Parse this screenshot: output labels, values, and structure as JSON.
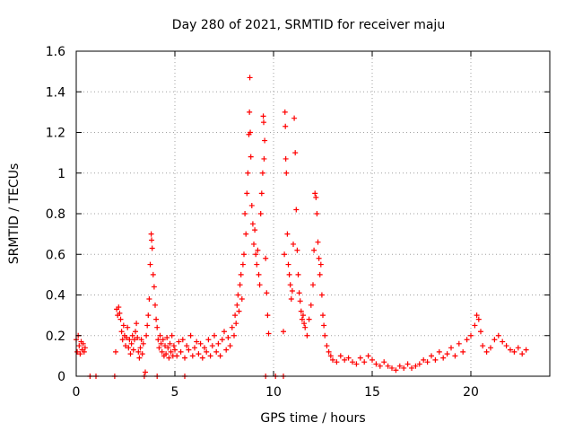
{
  "chart_data": {
    "type": "scatter",
    "title": "Day 280 of 2021, SRMTID for receiver maju",
    "xlabel": "GPS time / hours",
    "ylabel": "SRMTID / TECUs",
    "xlim": [
      0,
      24
    ],
    "ylim": [
      0,
      1.6
    ],
    "xticks": [
      0,
      5,
      10,
      15,
      20
    ],
    "yticks": [
      0,
      0.2,
      0.4,
      0.6,
      0.8,
      1,
      1.2,
      1.4,
      1.6
    ],
    "xtick_labels": [
      "0",
      "5",
      "10",
      "15",
      "20"
    ],
    "ytick_labels": [
      "0",
      "0.2",
      "0.4",
      "0.6",
      "0.8",
      "1",
      "1.2",
      "1.4",
      "1.6"
    ],
    "grid": true,
    "marker": "+",
    "color": "#ff0000",
    "series": [
      {
        "name": "SRMTID",
        "points": [
          [
            0.0,
            0.18
          ],
          [
            0.05,
            0.12
          ],
          [
            0.1,
            0.2
          ],
          [
            0.15,
            0.15
          ],
          [
            0.2,
            0.11
          ],
          [
            0.25,
            0.17
          ],
          [
            0.3,
            0.13
          ],
          [
            0.35,
            0.16
          ],
          [
            0.4,
            0.12
          ],
          [
            0.45,
            0.14
          ],
          [
            0.7,
            0.0
          ],
          [
            1.0,
            0.0
          ],
          [
            1.95,
            0.0
          ],
          [
            3.45,
            0.0
          ],
          [
            4.1,
            0.0
          ],
          [
            5.5,
            0.0
          ],
          [
            9.6,
            0.0
          ],
          [
            10.1,
            0.0
          ],
          [
            10.5,
            0.0
          ],
          [
            2.0,
            0.12
          ],
          [
            2.05,
            0.33
          ],
          [
            2.1,
            0.3
          ],
          [
            2.15,
            0.34
          ],
          [
            2.2,
            0.31
          ],
          [
            2.25,
            0.28
          ],
          [
            2.3,
            0.22
          ],
          [
            2.35,
            0.18
          ],
          [
            2.4,
            0.25
          ],
          [
            2.45,
            0.2
          ],
          [
            2.5,
            0.15
          ],
          [
            2.55,
            0.19
          ],
          [
            2.6,
            0.24
          ],
          [
            2.65,
            0.14
          ],
          [
            2.7,
            0.18
          ],
          [
            2.75,
            0.11
          ],
          [
            2.8,
            0.16
          ],
          [
            2.85,
            0.2
          ],
          [
            2.9,
            0.13
          ],
          [
            2.95,
            0.18
          ],
          [
            3.0,
            0.22
          ],
          [
            3.05,
            0.26
          ],
          [
            3.1,
            0.19
          ],
          [
            3.15,
            0.12
          ],
          [
            3.2,
            0.09
          ],
          [
            3.25,
            0.14
          ],
          [
            3.3,
            0.18
          ],
          [
            3.35,
            0.11
          ],
          [
            3.4,
            0.16
          ],
          [
            3.5,
            0.02
          ],
          [
            3.55,
            0.2
          ],
          [
            3.6,
            0.25
          ],
          [
            3.65,
            0.3
          ],
          [
            3.7,
            0.38
          ],
          [
            3.75,
            0.55
          ],
          [
            3.8,
            0.7
          ],
          [
            3.82,
            0.67
          ],
          [
            3.85,
            0.63
          ],
          [
            3.9,
            0.5
          ],
          [
            3.95,
            0.44
          ],
          [
            4.0,
            0.35
          ],
          [
            4.05,
            0.28
          ],
          [
            4.1,
            0.24
          ],
          [
            4.15,
            0.18
          ],
          [
            4.2,
            0.14
          ],
          [
            4.25,
            0.2
          ],
          [
            4.3,
            0.16
          ],
          [
            4.35,
            0.12
          ],
          [
            4.4,
            0.18
          ],
          [
            4.45,
            0.1
          ],
          [
            4.5,
            0.15
          ],
          [
            4.55,
            0.11
          ],
          [
            4.6,
            0.19
          ],
          [
            4.65,
            0.14
          ],
          [
            4.7,
            0.09
          ],
          [
            4.75,
            0.16
          ],
          [
            4.8,
            0.12
          ],
          [
            4.85,
            0.2
          ],
          [
            4.9,
            0.1
          ],
          [
            4.95,
            0.15
          ],
          [
            5.0,
            0.13
          ],
          [
            5.1,
            0.1
          ],
          [
            5.2,
            0.17
          ],
          [
            5.3,
            0.12
          ],
          [
            5.4,
            0.18
          ],
          [
            5.5,
            0.09
          ],
          [
            5.6,
            0.15
          ],
          [
            5.7,
            0.13
          ],
          [
            5.8,
            0.2
          ],
          [
            5.9,
            0.1
          ],
          [
            6.0,
            0.14
          ],
          [
            6.1,
            0.17
          ],
          [
            6.2,
            0.11
          ],
          [
            6.3,
            0.16
          ],
          [
            6.4,
            0.09
          ],
          [
            6.5,
            0.14
          ],
          [
            6.6,
            0.12
          ],
          [
            6.7,
            0.18
          ],
          [
            6.8,
            0.1
          ],
          [
            6.9,
            0.15
          ],
          [
            7.0,
            0.2
          ],
          [
            7.1,
            0.12
          ],
          [
            7.2,
            0.16
          ],
          [
            7.3,
            0.1
          ],
          [
            7.4,
            0.18
          ],
          [
            7.5,
            0.22
          ],
          [
            7.6,
            0.13
          ],
          [
            7.7,
            0.19
          ],
          [
            7.8,
            0.15
          ],
          [
            7.9,
            0.24
          ],
          [
            8.0,
            0.2
          ],
          [
            8.05,
            0.3
          ],
          [
            8.1,
            0.26
          ],
          [
            8.15,
            0.35
          ],
          [
            8.2,
            0.4
          ],
          [
            8.25,
            0.32
          ],
          [
            8.3,
            0.45
          ],
          [
            8.35,
            0.5
          ],
          [
            8.4,
            0.38
          ],
          [
            8.45,
            0.55
          ],
          [
            8.5,
            0.6
          ],
          [
            8.55,
            0.8
          ],
          [
            8.6,
            0.7
          ],
          [
            8.65,
            0.9
          ],
          [
            8.7,
            1.0
          ],
          [
            8.75,
            1.19
          ],
          [
            8.78,
            1.3
          ],
          [
            8.8,
            1.47
          ],
          [
            8.82,
            1.2
          ],
          [
            8.85,
            1.08
          ],
          [
            8.9,
            0.84
          ],
          [
            8.95,
            0.75
          ],
          [
            9.0,
            0.65
          ],
          [
            9.05,
            0.72
          ],
          [
            9.1,
            0.6
          ],
          [
            9.15,
            0.55
          ],
          [
            9.2,
            0.62
          ],
          [
            9.25,
            0.5
          ],
          [
            9.3,
            0.45
          ],
          [
            9.35,
            0.8
          ],
          [
            9.4,
            0.9
          ],
          [
            9.45,
            1.0
          ],
          [
            9.48,
            1.28
          ],
          [
            9.5,
            1.25
          ],
          [
            9.52,
            1.07
          ],
          [
            9.55,
            1.16
          ],
          [
            9.6,
            0.58
          ],
          [
            9.65,
            0.41
          ],
          [
            9.7,
            0.3
          ],
          [
            9.75,
            0.21
          ],
          [
            10.5,
            0.22
          ],
          [
            10.55,
            0.6
          ],
          [
            10.58,
            1.3
          ],
          [
            10.6,
            1.23
          ],
          [
            10.62,
            1.07
          ],
          [
            10.65,
            1.0
          ],
          [
            10.7,
            0.7
          ],
          [
            10.75,
            0.55
          ],
          [
            10.8,
            0.5
          ],
          [
            10.85,
            0.45
          ],
          [
            10.9,
            0.38
          ],
          [
            10.95,
            0.42
          ],
          [
            11.0,
            0.65
          ],
          [
            11.05,
            1.27
          ],
          [
            11.1,
            1.1
          ],
          [
            11.15,
            0.82
          ],
          [
            11.2,
            0.62
          ],
          [
            11.25,
            0.5
          ],
          [
            11.3,
            0.41
          ],
          [
            11.35,
            0.37
          ],
          [
            11.4,
            0.32
          ],
          [
            11.45,
            0.28
          ],
          [
            11.5,
            0.3
          ],
          [
            11.55,
            0.26
          ],
          [
            11.6,
            0.24
          ],
          [
            11.7,
            0.2
          ],
          [
            11.8,
            0.28
          ],
          [
            11.9,
            0.35
          ],
          [
            12.0,
            0.45
          ],
          [
            12.05,
            0.62
          ],
          [
            12.1,
            0.9
          ],
          [
            12.15,
            0.88
          ],
          [
            12.2,
            0.8
          ],
          [
            12.25,
            0.66
          ],
          [
            12.3,
            0.58
          ],
          [
            12.35,
            0.5
          ],
          [
            12.4,
            0.55
          ],
          [
            12.45,
            0.4
          ],
          [
            12.5,
            0.3
          ],
          [
            12.55,
            0.25
          ],
          [
            12.6,
            0.2
          ],
          [
            12.7,
            0.15
          ],
          [
            12.8,
            0.12
          ],
          [
            12.9,
            0.1
          ],
          [
            13.0,
            0.08
          ],
          [
            13.2,
            0.07
          ],
          [
            13.4,
            0.1
          ],
          [
            13.6,
            0.08
          ],
          [
            13.8,
            0.09
          ],
          [
            14.0,
            0.07
          ],
          [
            14.2,
            0.06
          ],
          [
            14.4,
            0.09
          ],
          [
            14.6,
            0.07
          ],
          [
            14.8,
            0.1
          ],
          [
            15.0,
            0.08
          ],
          [
            15.2,
            0.06
          ],
          [
            15.4,
            0.05
          ],
          [
            15.6,
            0.07
          ],
          [
            15.8,
            0.05
          ],
          [
            16.0,
            0.04
          ],
          [
            16.2,
            0.03
          ],
          [
            16.4,
            0.05
          ],
          [
            16.6,
            0.04
          ],
          [
            16.8,
            0.06
          ],
          [
            17.0,
            0.04
          ],
          [
            17.2,
            0.05
          ],
          [
            17.4,
            0.06
          ],
          [
            17.6,
            0.08
          ],
          [
            17.8,
            0.07
          ],
          [
            18.0,
            0.1
          ],
          [
            18.2,
            0.08
          ],
          [
            18.4,
            0.12
          ],
          [
            18.6,
            0.09
          ],
          [
            18.8,
            0.11
          ],
          [
            19.0,
            0.14
          ],
          [
            19.2,
            0.1
          ],
          [
            19.4,
            0.16
          ],
          [
            19.6,
            0.12
          ],
          [
            19.8,
            0.18
          ],
          [
            20.0,
            0.2
          ],
          [
            20.2,
            0.25
          ],
          [
            20.3,
            0.3
          ],
          [
            20.4,
            0.28
          ],
          [
            20.5,
            0.22
          ],
          [
            20.6,
            0.15
          ],
          [
            20.8,
            0.12
          ],
          [
            21.0,
            0.14
          ],
          [
            21.2,
            0.18
          ],
          [
            21.4,
            0.2
          ],
          [
            21.6,
            0.17
          ],
          [
            21.8,
            0.15
          ],
          [
            22.0,
            0.13
          ],
          [
            22.2,
            0.12
          ],
          [
            22.4,
            0.14
          ],
          [
            22.6,
            0.11
          ],
          [
            22.8,
            0.13
          ]
        ]
      }
    ]
  }
}
